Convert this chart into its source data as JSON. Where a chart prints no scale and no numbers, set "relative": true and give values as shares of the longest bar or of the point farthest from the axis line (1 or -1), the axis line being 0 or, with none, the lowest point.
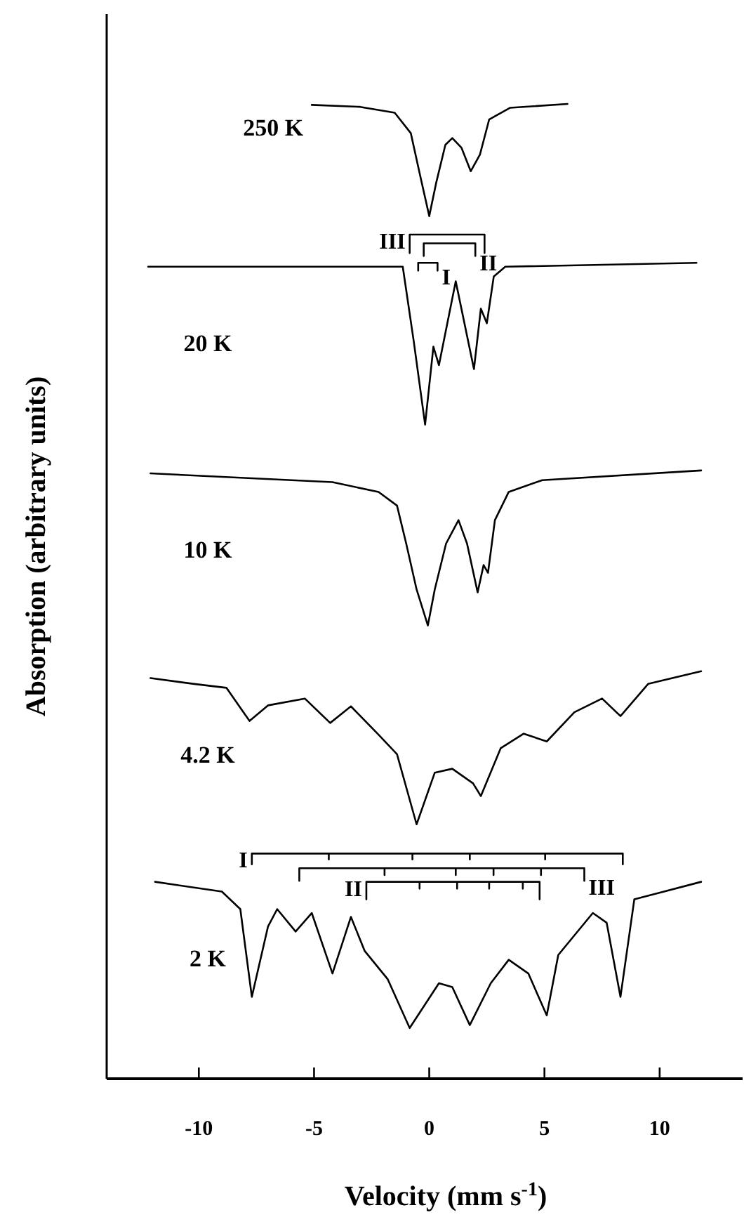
{
  "chart_data": {
    "type": "line",
    "relative": true,
    "xlabel": "Velocity (mm s$^{-1}$)",
    "ylabel": "Absorption (arbitrary units)",
    "xlim": [
      -14,
      13.6
    ],
    "xticks": [
      -10,
      -5,
      0,
      5,
      10
    ],
    "tick_labels": "x",
    "series": [
      {
        "name": "250 K",
        "color": "#000000",
        "x": [
          -5.1,
          -3,
          -1.5,
          -0.8,
          -0.4,
          0,
          0.3,
          0.7,
          1.0,
          1.4,
          1.8,
          2.2,
          2.6,
          3.5,
          6
        ],
        "values": [
          0.999,
          0.997,
          0.991,
          0.97,
          0.927,
          0.885,
          0.919,
          0.958,
          0.965,
          0.955,
          0.931,
          0.948,
          0.984,
          0.996,
          1
        ]
      },
      {
        "name": "20 K",
        "color": "#000000",
        "x": [
          -12.2,
          -6,
          -1.15,
          -0.67,
          -0.18,
          0.18,
          0.42,
          1.15,
          1.94,
          2.24,
          2.5,
          2.8,
          3.3,
          11.6
        ],
        "values": [
          0.833,
          0.833,
          0.833,
          0.756,
          0.671,
          0.751,
          0.732,
          0.818,
          0.728,
          0.79,
          0.775,
          0.823,
          0.833,
          0.837
        ]
      },
      {
        "name": "10 K",
        "color": "#000000",
        "x": [
          -12.1,
          -4.2,
          -2.2,
          -1.4,
          -1.0,
          -0.55,
          -0.06,
          0.24,
          0.73,
          1.27,
          1.64,
          2.1,
          2.36,
          2.55,
          2.85,
          3.45,
          4.9,
          11.8
        ],
        "values": [
          0.621,
          0.612,
          0.602,
          0.588,
          0.549,
          0.502,
          0.465,
          0.502,
          0.549,
          0.573,
          0.549,
          0.499,
          0.527,
          0.519,
          0.573,
          0.602,
          0.614,
          0.624
        ]
      },
      {
        "name": "4.2 K",
        "color": "#000000",
        "x": [
          -12.1,
          -10.2,
          -8.8,
          -7.8,
          -7.0,
          -5.4,
          -4.3,
          -3.4,
          -2.2,
          -1.4,
          -0.55,
          0.24,
          1.0,
          1.9,
          2.24,
          3.1,
          4.1,
          5.1,
          6.3,
          7.5,
          8.3,
          9.5,
          11.8
        ],
        "values": [
          0.411,
          0.405,
          0.401,
          0.367,
          0.383,
          0.39,
          0.365,
          0.382,
          0.353,
          0.333,
          0.261,
          0.314,
          0.318,
          0.303,
          0.29,
          0.339,
          0.354,
          0.346,
          0.376,
          0.39,
          0.372,
          0.405,
          0.418
        ]
      },
      {
        "name": "2 K",
        "color": "#000000",
        "x": [
          -11.9,
          -9.0,
          -8.2,
          -7.7,
          -7.0,
          -6.6,
          -5.8,
          -5.1,
          -4.2,
          -3.4,
          -2.8,
          -1.8,
          -0.85,
          0.42,
          1.0,
          1.76,
          2.67,
          3.45,
          4.3,
          5.1,
          5.6,
          7.1,
          7.7,
          8.3,
          8.9,
          11.8
        ],
        "values": [
          0.202,
          0.192,
          0.174,
          0.084,
          0.156,
          0.174,
          0.151,
          0.17,
          0.108,
          0.166,
          0.131,
          0.102,
          0.052,
          0.098,
          0.094,
          0.055,
          0.098,
          0.122,
          0.108,
          0.065,
          0.127,
          0.17,
          0.16,
          0.084,
          0.184,
          0.202
        ]
      },
      {
        "name": "III",
        "color": "#000000",
        "x": [
          -0.85,
          -0.85,
          2.4,
          2.4
        ],
        "values": [
          0.847,
          0.866,
          0.866,
          0.847
        ]
      },
      {
        "name": "II",
        "color": "#000000",
        "x": [
          -0.24,
          -0.24,
          2.0,
          2.0
        ],
        "values": [
          0.844,
          0.857,
          0.857,
          0.844
        ]
      },
      {
        "name": "I",
        "color": "#000000",
        "x": [
          -0.48,
          -0.48,
          0.36,
          0.36
        ],
        "values": [
          0.829,
          0.837,
          0.837,
          0.829
        ]
      },
      {
        "name": "I",
        "color": "#000000",
        "x": [
          -7.7,
          -7.7,
          -4.36,
          -4.36,
          -4.36,
          -0.73,
          -0.73,
          -0.73,
          1.76,
          1.76,
          1.76,
          5.03,
          5.03,
          5.03,
          8.4,
          8.4
        ],
        "values": [
          0.22,
          0.231,
          0.231,
          0.225,
          0.231,
          0.231,
          0.225,
          0.231,
          0.231,
          0.225,
          0.231,
          0.231,
          0.225,
          0.231,
          0.231,
          0.22
        ]
      },
      {
        "name": "III",
        "color": "#000000",
        "x": [
          -5.64,
          -5.64,
          -1.94,
          -1.94,
          -1.94,
          1.15,
          1.15,
          1.15,
          2.79,
          2.79,
          2.79,
          4.85,
          4.85,
          4.85,
          6.73,
          6.73
        ],
        "values": [
          0.203,
          0.216,
          0.216,
          0.209,
          0.216,
          0.216,
          0.209,
          0.216,
          0.216,
          0.209,
          0.216,
          0.216,
          0.209,
          0.216,
          0.216,
          0.203
        ]
      },
      {
        "name": "II",
        "color": "#000000",
        "x": [
          -2.73,
          -2.73,
          -0.42,
          -0.42,
          -0.42,
          1.21,
          1.21,
          1.21,
          2.6,
          2.6,
          2.6,
          4.06,
          4.06,
          4.06,
          4.79,
          4.79
        ],
        "values": [
          0.184,
          0.202,
          0.202,
          0.195,
          0.202,
          0.202,
          0.195,
          0.202,
          0.202,
          0.195,
          0.202,
          0.202,
          0.195,
          0.202,
          0.202,
          0.184
        ]
      }
    ]
  }
}
